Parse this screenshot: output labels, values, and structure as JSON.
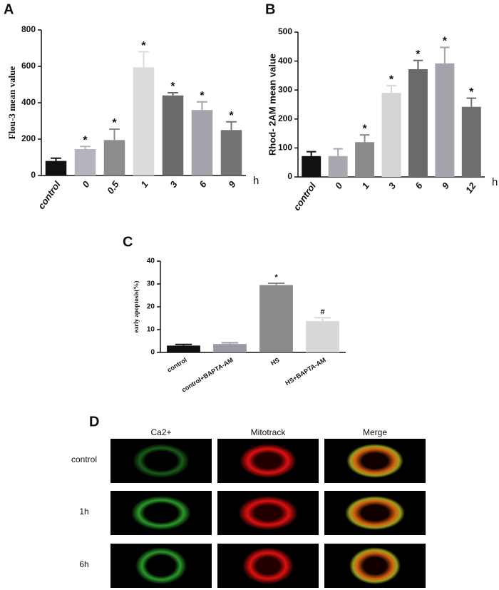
{
  "chart_data": [
    {
      "type": "bar",
      "panel": "A",
      "y_label": "Flou-3 mean value",
      "x_unit": "h",
      "categories": [
        "control",
        "0",
        "0.5",
        "1",
        "3",
        "6",
        "9"
      ],
      "values": [
        80,
        145,
        195,
        595,
        440,
        360,
        250
      ],
      "errors": [
        15,
        15,
        60,
        85,
        15,
        45,
        45
      ],
      "markers": [
        null,
        "*",
        "*",
        "*",
        "*",
        "*",
        "*"
      ],
      "colors": [
        "#111111",
        "#b4b4bc",
        "#8c8c8c",
        "#dcdcdc",
        "#6a6a6a",
        "#a4a4ac",
        "#737373"
      ],
      "ylim": [
        0,
        800
      ],
      "yticks": [
        0,
        200,
        400,
        600,
        800
      ]
    },
    {
      "type": "bar",
      "panel": "B",
      "y_label": "Rhod- 2AM mean value",
      "x_unit": "h",
      "categories": [
        "control",
        "0",
        "1",
        "3",
        "6",
        "9",
        "12"
      ],
      "values": [
        72,
        72,
        120,
        290,
        372,
        392,
        242
      ],
      "errors": [
        15,
        25,
        25,
        25,
        30,
        55,
        30
      ],
      "markers": [
        null,
        null,
        "*",
        "*",
        "*",
        "*",
        "*"
      ],
      "colors": [
        "#111111",
        "#a8a8b0",
        "#8a8a8a",
        "#d4d4d4",
        "#6a6a6a",
        "#a4a4ac",
        "#6e6e6e"
      ],
      "ylim": [
        0,
        500
      ],
      "yticks": [
        0,
        100,
        200,
        300,
        400,
        500
      ]
    },
    {
      "type": "bar",
      "panel": "C",
      "y_label": "early apoptosis(%)",
      "categories": [
        "control",
        "control+BAPTA-AM",
        "HS",
        "HS+BAPTA-AM"
      ],
      "values": [
        3,
        3.7,
        29.5,
        13.7
      ],
      "errors": [
        0.5,
        0.5,
        0.8,
        1.5
      ],
      "markers": [
        null,
        null,
        "*",
        "#"
      ],
      "colors": [
        "#111111",
        "#9a9aa4",
        "#8a8a8a",
        "#d8d8d8"
      ],
      "ylim": [
        0,
        40
      ],
      "yticks": [
        0,
        10,
        20,
        30,
        40
      ]
    }
  ],
  "panel_d": {
    "label": "D",
    "columns": [
      "Ca2+",
      "Mitotrack",
      "Merge"
    ],
    "rows": [
      "control",
      "1h",
      "6h"
    ]
  }
}
